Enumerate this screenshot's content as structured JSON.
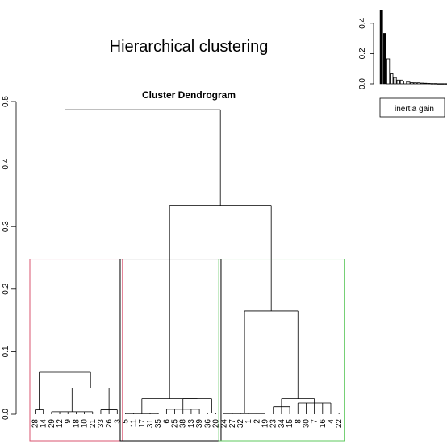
{
  "chart_data": [
    {
      "type": "dendrogram",
      "title": "Hierarchical clustering",
      "subtitle": "Cluster Dendrogram",
      "ylim": [
        0,
        0.5
      ],
      "yticks": [
        "0.0",
        "0.1",
        "0.2",
        "0.3",
        "0.4",
        "0.5"
      ],
      "leaf_labels": [
        "28",
        "14",
        "29",
        "12",
        "9",
        "18",
        "10",
        "21",
        "33",
        "26",
        "3",
        "5",
        "11",
        "17",
        "31",
        "35",
        "6",
        "25",
        "38",
        "13",
        "39",
        "36",
        "20",
        "24",
        "27",
        "32",
        "1",
        "2",
        "19",
        "23",
        "34",
        "15",
        "8",
        "30",
        "7",
        "16",
        "4",
        "22"
      ],
      "cut_height": 0.248,
      "cluster_colors": [
        "#d9536f",
        "#000000",
        "#5cc85c"
      ],
      "merges": [
        {
          "leaves": "28-14",
          "height": 0.007
        },
        {
          "leaves": "29-12-9-18-10",
          "height": 0.004
        },
        {
          "leaves": "33-26-3",
          "height": 0.007
        },
        {
          "leaves": "29..3",
          "height": 0.042
        },
        {
          "leaves": "28..3",
          "height": 0.067
        },
        {
          "leaves": "5..36",
          "height": 0.025
        },
        {
          "leaves": "6-25-38-13-39",
          "height": 0.008
        },
        {
          "leaves": "24..22",
          "height": 0.165
        },
        {
          "leaves": "23..22",
          "height": 0.025
        },
        {
          "leaves": "34-15-8",
          "height": 0.012
        },
        {
          "leaves": "30-7-16-4-22",
          "height": 0.018
        },
        {
          "leaves": "5..22",
          "height": 0.333
        },
        {
          "leaves": "all",
          "height": 0.487
        }
      ]
    },
    {
      "type": "bar",
      "legend": "inertia gain",
      "ylim": [
        0,
        0.5
      ],
      "yticks": [
        "0.0",
        "0.2",
        "0.4"
      ],
      "values": [
        0.487,
        0.333,
        0.165,
        0.067,
        0.042,
        0.025,
        0.025,
        0.018,
        0.012,
        0.008,
        0.007,
        0.007,
        0.005,
        0.004,
        0.003,
        0.002,
        0.002,
        0.001,
        0.001,
        0.001
      ],
      "highlight_count": 2
    }
  ]
}
